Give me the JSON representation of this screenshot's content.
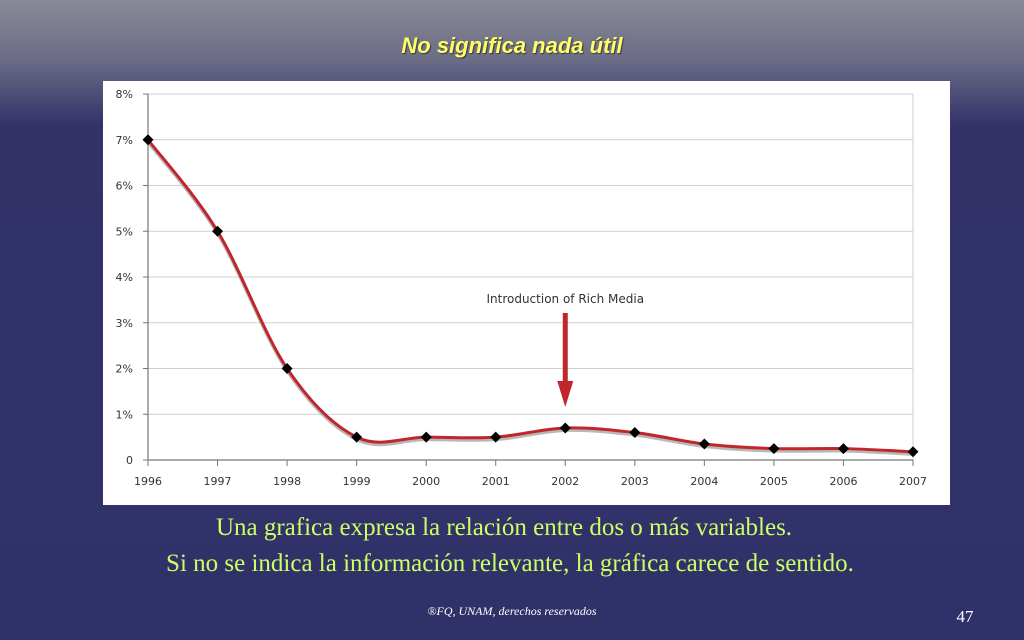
{
  "slide": {
    "title": "No significa nada útil",
    "caption_line1": "Una grafica expresa la relación entre dos o más variables.",
    "caption_line2": "Si no se indica la información relevante, la gráfica carece de sentido.",
    "footer": "®FQ, UNAM, derechos reservados",
    "page_number": "47"
  },
  "chart_data": {
    "type": "line",
    "title": "",
    "xlabel": "",
    "ylabel": "",
    "x": [
      "1996",
      "1997",
      "1998",
      "1999",
      "2000",
      "2001",
      "2002",
      "2003",
      "2004",
      "2005",
      "2006",
      "2007"
    ],
    "series": [
      {
        "values": [
          7.0,
          5.0,
          2.0,
          0.5,
          0.5,
          0.5,
          0.7,
          0.6,
          0.35,
          0.25,
          0.25,
          0.18
        ]
      }
    ],
    "ylim": [
      0,
      8
    ],
    "y_ticks": [
      0,
      1,
      2,
      3,
      4,
      5,
      6,
      7,
      8
    ],
    "y_tick_labels": [
      "0",
      "1%",
      "2%",
      "3%",
      "4%",
      "5%",
      "6%",
      "7%",
      "8%"
    ],
    "grid": true,
    "line_color": "#c0272d",
    "marker_color": "#000000",
    "annotation": {
      "text": "Introduction of Rich Media",
      "x": "2002",
      "color": "#c0272d"
    }
  }
}
